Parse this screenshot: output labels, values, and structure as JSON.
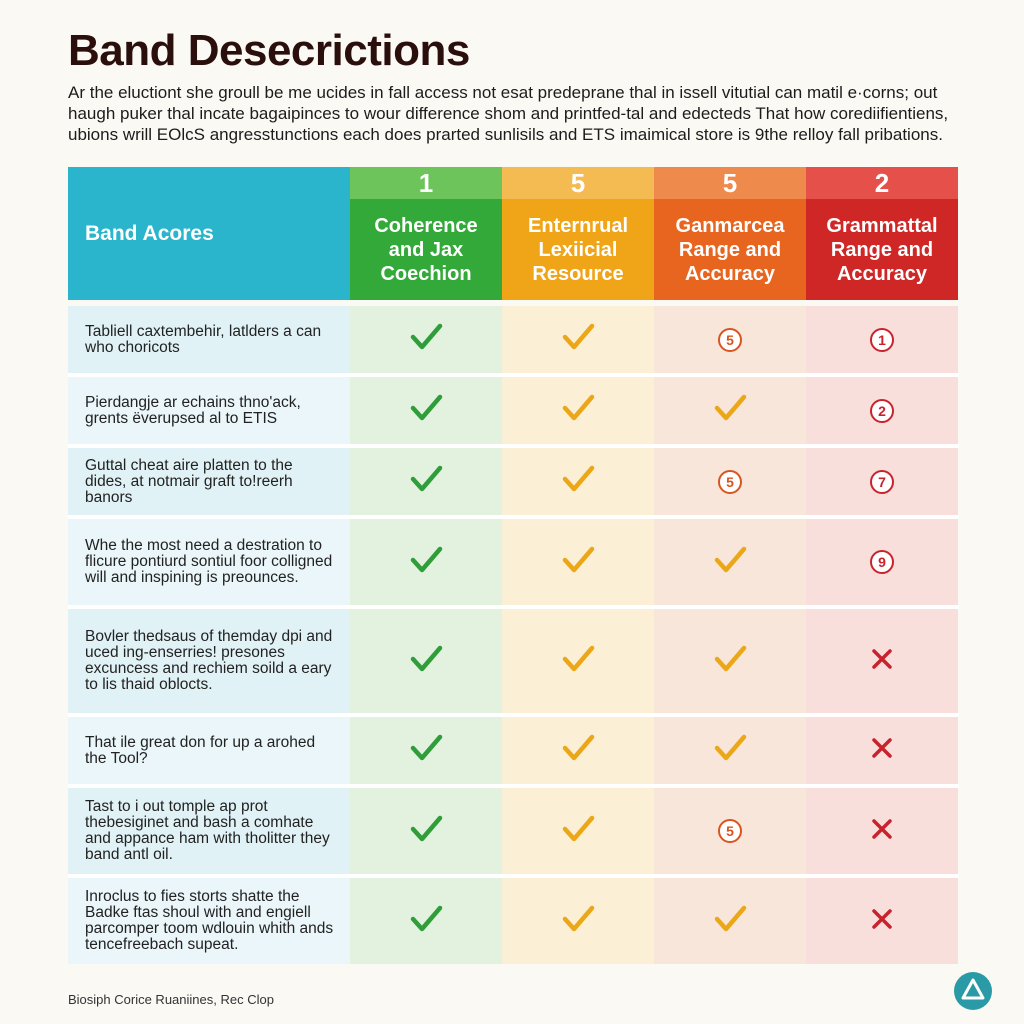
{
  "title": "Band Desecrictions",
  "intro_lines": [
    "Ar the eluctiont she groull be me ucides in fall access not esat predeprane thal in issell vitutial can matil e·corns; out",
    "haugh puker thal incate bagaipinces to wour difference shom and printfed-tal and edecteds That how corediifientiens,",
    "ubions wrill EOlcS angresstunctions each does prarted sunlisils and ETS imaimical store is 9the relloy fall pribations."
  ],
  "table": {
    "header_label": "Band Acores",
    "columns": [
      {
        "score": "1",
        "name": "Coherence and Jax Coechion",
        "header_top": "#6cc45a",
        "header_bottom": "#33a93a",
        "tint": "#e3f1df"
      },
      {
        "score": "5",
        "name": "Enternrual Lexiicial Resource",
        "header_top": "#f4bb53",
        "header_bottom": "#f0a418",
        "tint": "#fbefd6"
      },
      {
        "score": "5",
        "name": "Ganmarcea Range and Accuracy",
        "header_top": "#ee8a4c",
        "header_bottom": "#e8651f",
        "tint": "#f8e6da"
      },
      {
        "score": "2",
        "name": "Grammattal Range and Accuracy",
        "header_top": "#e5504a",
        "header_bottom": "#cf2626",
        "tint": "#f8dfdc"
      }
    ],
    "rows": [
      {
        "label": "Tabliell caxtembehir, latlders a can who choricots",
        "marks": [
          {
            "type": "check",
            "color": "green"
          },
          {
            "type": "check",
            "color": "amber"
          },
          {
            "type": "badge",
            "text": "5",
            "color": "orange"
          },
          {
            "type": "badge",
            "text": "1",
            "color": "red"
          }
        ]
      },
      {
        "label": "Pierdangje ar echains thno'ack, grents ëverupsed al to ETIS",
        "marks": [
          {
            "type": "check",
            "color": "green"
          },
          {
            "type": "check",
            "color": "amber"
          },
          {
            "type": "check",
            "color": "amber"
          },
          {
            "type": "badge",
            "text": "2",
            "color": "red"
          }
        ]
      },
      {
        "label": "Guttal cheat aire platten to the dides, at notmair graft to!reerh banors",
        "marks": [
          {
            "type": "check",
            "color": "green"
          },
          {
            "type": "check",
            "color": "amber"
          },
          {
            "type": "badge",
            "text": "5",
            "color": "orange"
          },
          {
            "type": "badge",
            "text": "7",
            "color": "red"
          }
        ]
      },
      {
        "label": "Whe the most need a destration to flicure pontiurd sontiul foor colligned will and inspining is preounces.",
        "marks": [
          {
            "type": "check",
            "color": "green"
          },
          {
            "type": "check",
            "color": "amber"
          },
          {
            "type": "check",
            "color": "amber"
          },
          {
            "type": "badge",
            "text": "9",
            "color": "red"
          }
        ]
      },
      {
        "label": "Bovler thedsaus of themday dpi and uced ing-enserries! presones excuncess and rechiem soild a eary to lis thaid oblocts.",
        "marks": [
          {
            "type": "check",
            "color": "green"
          },
          {
            "type": "check",
            "color": "amber"
          },
          {
            "type": "check",
            "color": "amber"
          },
          {
            "type": "cross",
            "color": "red"
          }
        ]
      },
      {
        "label": "That ile great don for up a arohed the Tool?",
        "marks": [
          {
            "type": "check",
            "color": "green"
          },
          {
            "type": "check",
            "color": "amber"
          },
          {
            "type": "check",
            "color": "amber"
          },
          {
            "type": "cross",
            "color": "red"
          }
        ]
      },
      {
        "label": "Tast to i out tomple ap prot thebesiginet and bash a comhate and appance ham with tholitter they band antl oil.",
        "marks": [
          {
            "type": "check",
            "color": "green"
          },
          {
            "type": "check",
            "color": "amber"
          },
          {
            "type": "badge",
            "text": "5",
            "color": "orange"
          },
          {
            "type": "cross",
            "color": "red"
          }
        ]
      },
      {
        "label": "Inroclus to fies storts shatte the Badke ftas shoul with and engiell parcomper toom wdlouin whith ands tencefreebach supeat.",
        "marks": [
          {
            "type": "check",
            "color": "green"
          },
          {
            "type": "check",
            "color": "amber"
          },
          {
            "type": "check",
            "color": "amber"
          },
          {
            "type": "cross",
            "color": "red"
          }
        ]
      }
    ],
    "label_tints": [
      "#e1f2f6",
      "#eaf6f9"
    ]
  },
  "colors": {
    "green": "#2f9e3a",
    "amber": "#eba718",
    "orange": "#d9541f",
    "red": "#c8232c",
    "logo": "#2a9aa6"
  },
  "footer": "Biosiph Corice Ruaniines, Rec Clop"
}
